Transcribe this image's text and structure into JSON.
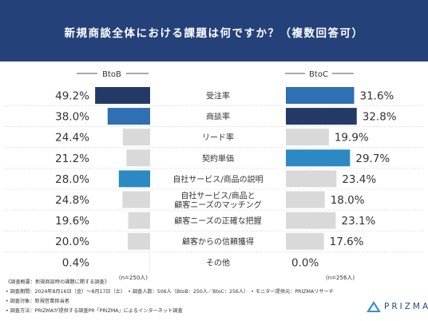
{
  "page": {
    "title": "新規商談全体における課題は何ですか？（複数回答可）",
    "colors": {
      "header_bg": "#25417a",
      "navy": "#243a66",
      "blue": "#2f6fb3",
      "mid_blue": "#2c89c4",
      "gray": "#d9d9d9",
      "text": "#333333"
    }
  },
  "chart_data": {
    "type": "bar",
    "orientation": "horizontal",
    "layout": "back-to-back",
    "categories": [
      "受注率",
      "商談率",
      "リード率",
      "契約単価",
      "自社サービス/商品の説明",
      "自社サービス/商品と\n顧客ニーズのマッチング",
      "顧客ニーズの正確な把握",
      "顧客からの信頼獲得",
      "その他"
    ],
    "series": [
      {
        "name": "BtoB",
        "values": [
          49.2,
          38.0,
          24.4,
          21.2,
          28.0,
          24.8,
          19.6,
          20.0,
          0.4
        ],
        "labels": [
          "49.2%",
          "38.0%",
          "24.4%",
          "21.2%",
          "28.0%",
          "24.8%",
          "19.6%",
          "20.0%",
          "0.4%"
        ],
        "colors": [
          "#243a66",
          "#2f6fb3",
          "#d9d9d9",
          "#d9d9d9",
          "#2c89c4",
          "#d9d9d9",
          "#d9d9d9",
          "#d9d9d9",
          "#d9d9d9"
        ],
        "n_label": "(n=250人)"
      },
      {
        "name": "BtoC",
        "values": [
          31.6,
          32.8,
          19.9,
          29.7,
          23.4,
          18.0,
          23.1,
          17.6,
          0.0
        ],
        "labels": [
          "31.6%",
          "32.8%",
          "19.9%",
          "29.7%",
          "23.4%",
          "18.0%",
          "23.1%",
          "17.6%",
          "0.0%"
        ],
        "colors": [
          "#2f6fb3",
          "#243a66",
          "#d9d9d9",
          "#2c89c4",
          "#d9d9d9",
          "#d9d9d9",
          "#d9d9d9",
          "#d9d9d9",
          "#d9d9d9"
        ],
        "n_label": "(n=256人)"
      }
    ]
  },
  "footer": {
    "notes": [
      "《調査概要：新規商談時の課題に関する調査》",
      "• 調査期間：2024年8月16日（金）〜8月17日（土）　• 調査人数：506人（BtoB：250人／BtoC：256人）　• モニター提供元：PRIZMAリサーチ",
      "• 調査対象：新規営業担当者",
      "• 調査方法：PRIZMAが提供する調査PR「PRIZMA」によるインターネット調査"
    ],
    "brand": "PRIZMA"
  }
}
